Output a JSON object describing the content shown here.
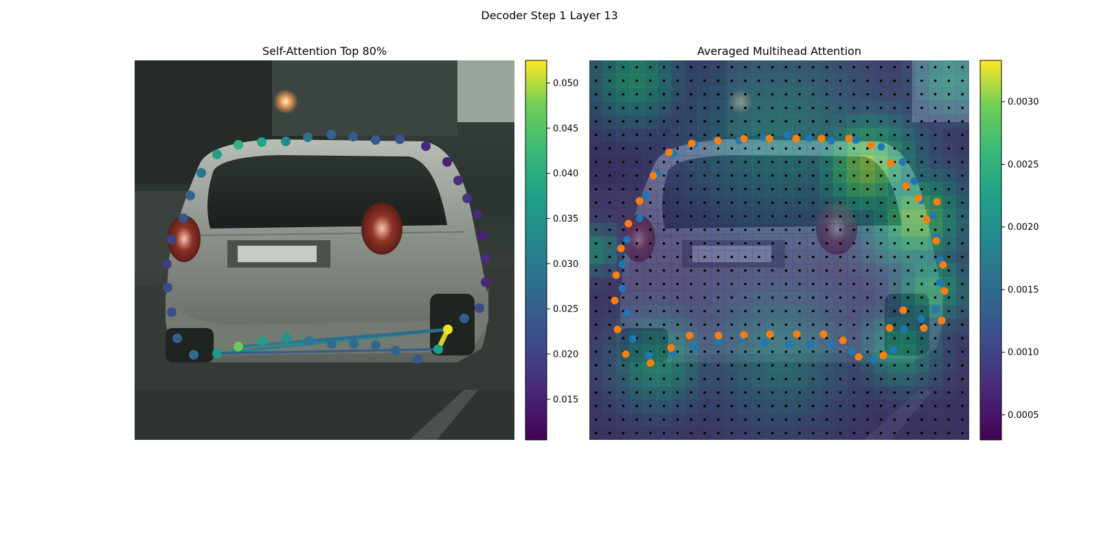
{
  "figure": {
    "suptitle": "Decoder Step 1 Layer 13",
    "left_title": "Self-Attention Top 80%",
    "right_title": "Averaged Multihead Attention"
  },
  "colors": {
    "viridis_low": "#440154",
    "viridis_mid": "#21918c",
    "viridis_high": "#fde725",
    "gt_points": "#1f77b4",
    "pred_points": "#ff7f0e",
    "grid_dots": "#000000"
  },
  "chart_data": [
    {
      "type": "scatter",
      "title": "Self-Attention Top 80%",
      "background": "photo-of-silver-hatchback-rear-view",
      "colorbar": {
        "range": [
          0.0105,
          0.0525
        ],
        "ticks": [
          0.015,
          0.02,
          0.025,
          0.03,
          0.035,
          0.04,
          0.045,
          0.05
        ],
        "tick_labels": [
          "0.015",
          "0.020",
          "0.025",
          "0.030",
          "0.035",
          "0.040",
          "0.045",
          "0.050"
        ]
      },
      "points": [
        {
          "x": 316,
          "y": 225,
          "v": 0.037
        },
        {
          "x": 347,
          "y": 211,
          "v": 0.041
        },
        {
          "x": 381,
          "y": 207,
          "v": 0.038
        },
        {
          "x": 416,
          "y": 206,
          "v": 0.033
        },
        {
          "x": 448,
          "y": 200,
          "v": 0.029
        },
        {
          "x": 482,
          "y": 196,
          "v": 0.026
        },
        {
          "x": 514,
          "y": 199,
          "v": 0.024
        },
        {
          "x": 547,
          "y": 204,
          "v": 0.024
        },
        {
          "x": 582,
          "y": 203,
          "v": 0.023
        },
        {
          "x": 620,
          "y": 213,
          "v": 0.016
        },
        {
          "x": 651,
          "y": 236,
          "v": 0.015
        },
        {
          "x": 667,
          "y": 263,
          "v": 0.017
        },
        {
          "x": 680,
          "y": 289,
          "v": 0.018
        },
        {
          "x": 695,
          "y": 312,
          "v": 0.016
        },
        {
          "x": 702,
          "y": 343,
          "v": 0.015
        },
        {
          "x": 707,
          "y": 377,
          "v": 0.017
        },
        {
          "x": 707,
          "y": 411,
          "v": 0.016
        },
        {
          "x": 698,
          "y": 449,
          "v": 0.021
        },
        {
          "x": 676,
          "y": 464,
          "v": 0.024
        },
        {
          "x": 652,
          "y": 480,
          "v": 0.052
        },
        {
          "x": 638,
          "y": 509,
          "v": 0.037
        },
        {
          "x": 608,
          "y": 523,
          "v": 0.024
        },
        {
          "x": 576,
          "y": 511,
          "v": 0.026
        },
        {
          "x": 547,
          "y": 503,
          "v": 0.027
        },
        {
          "x": 515,
          "y": 501,
          "v": 0.027
        },
        {
          "x": 483,
          "y": 501,
          "v": 0.027
        },
        {
          "x": 450,
          "y": 497,
          "v": 0.029
        },
        {
          "x": 417,
          "y": 492,
          "v": 0.035
        },
        {
          "x": 382,
          "y": 497,
          "v": 0.037
        },
        {
          "x": 347,
          "y": 505,
          "v": 0.047
        },
        {
          "x": 316,
          "y": 515,
          "v": 0.036
        },
        {
          "x": 282,
          "y": 517,
          "v": 0.027
        },
        {
          "x": 258,
          "y": 493,
          "v": 0.025
        },
        {
          "x": 250,
          "y": 455,
          "v": 0.022
        },
        {
          "x": 244,
          "y": 419,
          "v": 0.021
        },
        {
          "x": 243,
          "y": 385,
          "v": 0.019
        },
        {
          "x": 250,
          "y": 349,
          "v": 0.02
        },
        {
          "x": 267,
          "y": 318,
          "v": 0.023
        },
        {
          "x": 277,
          "y": 285,
          "v": 0.026
        },
        {
          "x": 293,
          "y": 252,
          "v": 0.029
        }
      ],
      "links": [
        {
          "from": 19,
          "to": 20,
          "v": 0.052
        },
        {
          "from": 19,
          "to": 30,
          "v": 0.032
        },
        {
          "from": 19,
          "to": 29,
          "v": 0.03
        },
        {
          "from": 20,
          "to": 30,
          "v": 0.024
        },
        {
          "from": 19,
          "to": 26,
          "v": 0.027
        }
      ]
    },
    {
      "type": "heatmap",
      "title": "Averaged Multihead Attention",
      "background": "photo-of-silver-hatchback-rear-view",
      "colorbar": {
        "range": [
          0.0003,
          0.00333
        ],
        "ticks": [
          0.0005,
          0.001,
          0.0015,
          0.002,
          0.0025,
          0.003
        ],
        "tick_labels": [
          "0.0005",
          "0.0010",
          "0.0015",
          "0.0020",
          "0.0025",
          "0.0030"
        ]
      },
      "grid_size": [
        28,
        28
      ],
      "series": [
        {
          "name": "",
          "color": "#1f77b4",
          "points": [
            [
              981,
              224
            ],
            [
              957,
              253
            ],
            [
              941,
              285
            ],
            [
              931,
              318
            ],
            [
              913,
              349
            ],
            [
              906,
              385
            ],
            [
              906,
              420
            ],
            [
              913,
              456
            ],
            [
              921,
              494
            ],
            [
              945,
              518
            ],
            [
              980,
              514
            ],
            [
              1011,
              506
            ],
            [
              1046,
              498
            ],
            [
              1080,
              493
            ],
            [
              1113,
              499
            ],
            [
              1148,
              502
            ],
            [
              1180,
              502
            ],
            [
              1211,
              502
            ],
            [
              1240,
              512
            ],
            [
              1271,
              524
            ],
            [
              1301,
              510
            ],
            [
              1316,
              480
            ],
            [
              1341,
              465
            ],
            [
              1362,
              451
            ],
            [
              1368,
              412
            ],
            [
              1369,
              379
            ],
            [
              1364,
              346
            ],
            [
              1358,
              314
            ],
            [
              1341,
              292
            ],
            [
              1331,
              264
            ],
            [
              1314,
              236
            ],
            [
              1283,
              214
            ],
            [
              1246,
              204
            ],
            [
              1210,
              205
            ],
            [
              1178,
              201
            ],
            [
              1146,
              197
            ],
            [
              1112,
              200
            ],
            [
              1076,
              205
            ],
            [
              1043,
              205
            ],
            [
              1011,
              210
            ]
          ]
        },
        {
          "name": "",
          "color": "#ff7f0e",
          "points": [
            [
              974,
              222
            ],
            [
              951,
              256
            ],
            [
              931,
              293
            ],
            [
              915,
              326
            ],
            [
              904,
              362
            ],
            [
              897,
              401
            ],
            [
              895,
              438
            ],
            [
              899,
              480
            ],
            [
              911,
              516
            ],
            [
              947,
              529
            ],
            [
              977,
              507
            ],
            [
              1004,
              489
            ],
            [
              1046,
              489
            ],
            [
              1083,
              488
            ],
            [
              1121,
              487
            ],
            [
              1160,
              487
            ],
            [
              1199,
              487
            ],
            [
              1227,
              496
            ],
            [
              1250,
              520
            ],
            [
              1286,
              518
            ],
            [
              1295,
              478
            ],
            [
              1315,
              452
            ],
            [
              1345,
              478
            ],
            [
              1371,
              467
            ],
            [
              1375,
              424
            ],
            [
              1373,
              386
            ],
            [
              1363,
              351
            ],
            [
              1349,
              320
            ],
            [
              1364,
              294
            ],
            [
              1337,
              289
            ],
            [
              1319,
              271
            ],
            [
              1297,
              238
            ],
            [
              1268,
              211
            ],
            [
              1236,
              202
            ],
            [
              1196,
              202
            ],
            [
              1159,
              202
            ],
            [
              1120,
              202
            ],
            [
              1083,
              202
            ],
            [
              1045,
              205
            ],
            [
              1007,
              209
            ]
          ]
        }
      ],
      "heat_blobs": [
        {
          "cx": 0.73,
          "cy": 0.28,
          "r": 0.14,
          "v": 0.0031
        },
        {
          "cx": 0.86,
          "cy": 0.42,
          "r": 0.13,
          "v": 0.003
        },
        {
          "cx": 0.9,
          "cy": 0.6,
          "r": 0.1,
          "v": 0.0026
        },
        {
          "cx": 0.82,
          "cy": 0.76,
          "r": 0.1,
          "v": 0.0024
        },
        {
          "cx": 0.18,
          "cy": 0.8,
          "r": 0.12,
          "v": 0.0023
        },
        {
          "cx": 0.12,
          "cy": 0.05,
          "r": 0.12,
          "v": 0.0024
        },
        {
          "cx": 0.02,
          "cy": 0.5,
          "r": 0.06,
          "v": 0.0022
        },
        {
          "cx": 0.5,
          "cy": 0.78,
          "r": 0.18,
          "v": 0.0018
        },
        {
          "cx": 0.5,
          "cy": 0.2,
          "r": 0.25,
          "v": 0.0019
        },
        {
          "cx": 0.95,
          "cy": 0.05,
          "r": 0.1,
          "v": 0.0021
        }
      ]
    }
  ]
}
